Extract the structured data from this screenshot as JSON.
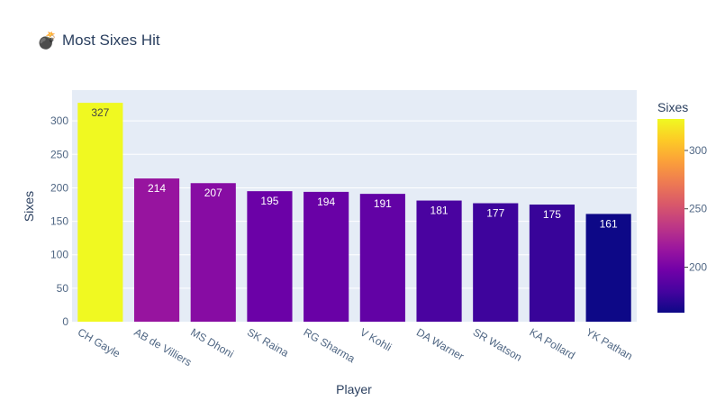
{
  "chart_data": {
    "type": "bar",
    "title": "Most Sixes Hit",
    "title_icon": "bomb-icon",
    "title_icon_glyph": "💣",
    "xlabel": "Player",
    "ylabel": "Sixes",
    "categories": [
      "CH Gayle",
      "AB de Villiers",
      "MS Dhoni",
      "SK Raina",
      "RG Sharma",
      "V Kohli",
      "DA Warner",
      "SR Watson",
      "KA Pollard",
      "YK Pathan"
    ],
    "values": [
      327,
      214,
      207,
      195,
      194,
      191,
      181,
      177,
      175,
      161
    ],
    "ylim": [
      0,
      346
    ],
    "yticks": [
      0,
      50,
      100,
      150,
      200,
      250,
      300
    ],
    "grid": true,
    "colorbar": {
      "title": "Sixes",
      "range": [
        161,
        327
      ],
      "ticks": [
        200,
        250,
        300
      ],
      "colorscale": "plasma"
    },
    "colors": {
      "plot_background": "#e5ecf6",
      "gridline": "#ffffff",
      "text": "#2a3f5f",
      "axis_text": "#506784",
      "label_inside_light": "#ffffff",
      "label_inside_dark": "#444444"
    }
  }
}
